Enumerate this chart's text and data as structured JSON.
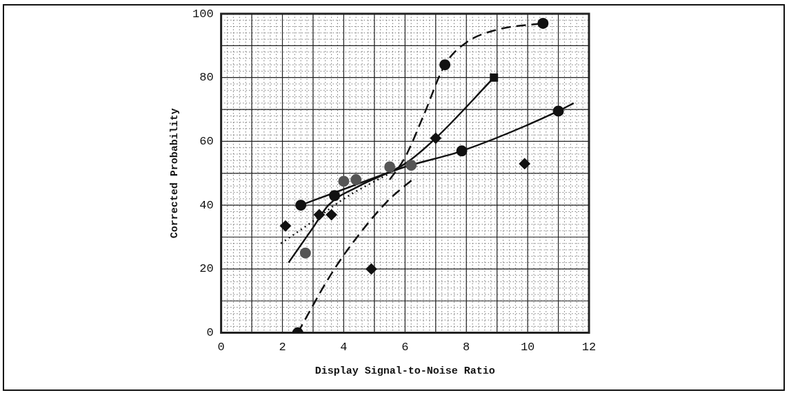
{
  "chart_data": {
    "type": "scatter",
    "xlabel": "Display Signal-to-Noise Ratio",
    "ylabel": "Corrected Probability",
    "xlim": [
      0,
      12
    ],
    "ylim": [
      0,
      100
    ],
    "xticks": [
      0,
      2,
      4,
      6,
      8,
      10,
      12
    ],
    "yticks": [
      0,
      20,
      40,
      60,
      80,
      100
    ],
    "grid": true,
    "legend": false,
    "series": [
      {
        "type": "line",
        "line_style": "dashed",
        "marker": "none",
        "color": "#111111",
        "x": [
          2.5,
          3.5,
          4.2,
          5.4,
          6.3
        ],
        "values": [
          0,
          17,
          27,
          41,
          48.5
        ]
      },
      {
        "type": "line",
        "line_style": "dashed",
        "marker": "none",
        "color": "#111111",
        "x": [
          5.5,
          6.0,
          6.6,
          7.3,
          8.0,
          9.0,
          10.5
        ],
        "values": [
          48,
          55,
          68,
          84,
          91,
          95,
          97
        ]
      },
      {
        "type": "line",
        "line_style": "solid",
        "marker": "none",
        "color": "#111111",
        "x": [
          2.2,
          3.0,
          3.5,
          4.5,
          6.0,
          7.0,
          8.9
        ],
        "values": [
          22,
          33,
          40,
          46,
          53,
          61,
          80
        ]
      },
      {
        "type": "line",
        "line_style": "solid",
        "marker": "none",
        "color": "#111111",
        "x": [
          2.6,
          4.0,
          6.0,
          7.85,
          11.0,
          11.5
        ],
        "values": [
          40,
          45,
          52,
          57,
          69.5,
          72
        ]
      },
      {
        "type": "line",
        "line_style": "dotted",
        "marker": "none",
        "color": "#111111",
        "x": [
          1.95,
          3.0,
          4.0,
          5.5
        ],
        "values": [
          28,
          35,
          42,
          50
        ]
      },
      {
        "type": "scatter",
        "marker": "circle",
        "color": "#111111",
        "x": [
          2.5,
          2.6,
          3.7,
          7.3,
          7.85,
          10.5,
          11.0
        ],
        "values": [
          0,
          40,
          43,
          84,
          57,
          97,
          69.5
        ]
      },
      {
        "type": "scatter",
        "marker": "diamond",
        "color": "#111111",
        "x": [
          2.1,
          3.2,
          3.6,
          4.9,
          7.0,
          9.9
        ],
        "values": [
          33.5,
          37,
          37,
          20,
          61,
          53
        ]
      },
      {
        "type": "scatter",
        "marker": "circle",
        "color": "#555555",
        "x": [
          2.75,
          4.0,
          4.4,
          5.5,
          6.2
        ],
        "values": [
          25,
          47.5,
          48,
          52,
          52.5
        ]
      },
      {
        "type": "scatter",
        "marker": "square",
        "color": "#111111",
        "x": [
          8.9
        ],
        "values": [
          80
        ]
      }
    ]
  }
}
